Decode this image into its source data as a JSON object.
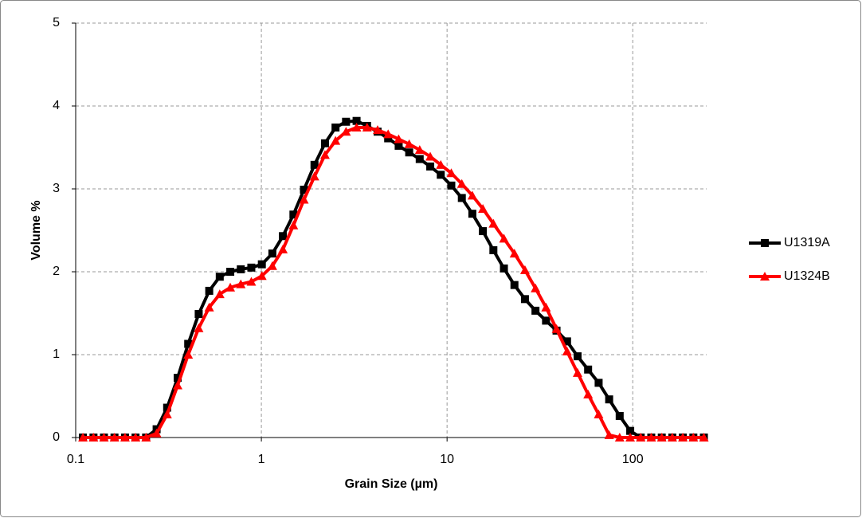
{
  "chart_data": {
    "type": "line",
    "xlabel": "Grain Size (µm)",
    "ylabel": "Volume %",
    "x": [
      0.1094,
      0.1247,
      0.142,
      0.1618,
      0.1844,
      0.2101,
      0.2394,
      0.2728,
      0.3108,
      0.3541,
      0.4035,
      0.4597,
      0.5238,
      0.5968,
      0.68,
      0.7748,
      0.8828,
      1.006,
      1.146,
      1.306,
      1.488,
      1.695,
      1.932,
      2.201,
      2.508,
      2.857,
      3.256,
      3.709,
      4.226,
      4.816,
      5.487,
      6.252,
      7.123,
      8.116,
      9.248,
      10.54,
      12.01,
      13.68,
      15.59,
      17.76,
      20.24,
      23.06,
      26.27,
      29.93,
      34.11,
      38.86,
      44.28,
      50.45,
      57.48,
      65.5,
      74.63,
      85.03,
      96.89,
      110.4,
      125.8,
      143.3,
      163.3,
      186.1,
      212.0,
      241.6
    ],
    "series": [
      {
        "name": "U1319A",
        "color": "#000000",
        "marker": "square",
        "values": [
          0,
          0,
          0,
          0,
          0,
          0,
          0,
          0.1,
          0.36,
          0.72,
          1.13,
          1.49,
          1.77,
          1.94,
          2.0,
          2.03,
          2.05,
          2.09,
          2.22,
          2.43,
          2.69,
          2.99,
          3.29,
          3.55,
          3.74,
          3.81,
          3.82,
          3.76,
          3.69,
          3.61,
          3.52,
          3.44,
          3.36,
          3.27,
          3.17,
          3.04,
          2.89,
          2.7,
          2.49,
          2.26,
          2.04,
          1.84,
          1.67,
          1.53,
          1.41,
          1.29,
          1.16,
          0.98,
          0.82,
          0.66,
          0.46,
          0.26,
          0.08,
          0,
          0,
          0,
          0,
          0,
          0,
          0
        ]
      },
      {
        "name": "U1324B",
        "color": "#ff0000",
        "marker": "triangle",
        "values": [
          0,
          0,
          0,
          0,
          0,
          0,
          0,
          0.05,
          0.28,
          0.63,
          1.0,
          1.32,
          1.57,
          1.73,
          1.81,
          1.85,
          1.88,
          1.95,
          2.07,
          2.27,
          2.56,
          2.87,
          3.15,
          3.41,
          3.58,
          3.69,
          3.74,
          3.74,
          3.71,
          3.66,
          3.6,
          3.54,
          3.47,
          3.39,
          3.29,
          3.19,
          3.06,
          2.92,
          2.76,
          2.58,
          2.4,
          2.22,
          2.02,
          1.8,
          1.57,
          1.31,
          1.04,
          0.78,
          0.52,
          0.28,
          0.03,
          0,
          0,
          0,
          0,
          0,
          0,
          0,
          0,
          0
        ]
      }
    ],
    "xlim": [
      0.1,
      250
    ],
    "xticks": [
      0.1,
      1,
      10,
      100
    ],
    "xlog": true,
    "ylim": [
      0,
      5
    ],
    "yticks": [
      0,
      1,
      2,
      3,
      4,
      5
    ],
    "grid": true,
    "legend": "right"
  }
}
